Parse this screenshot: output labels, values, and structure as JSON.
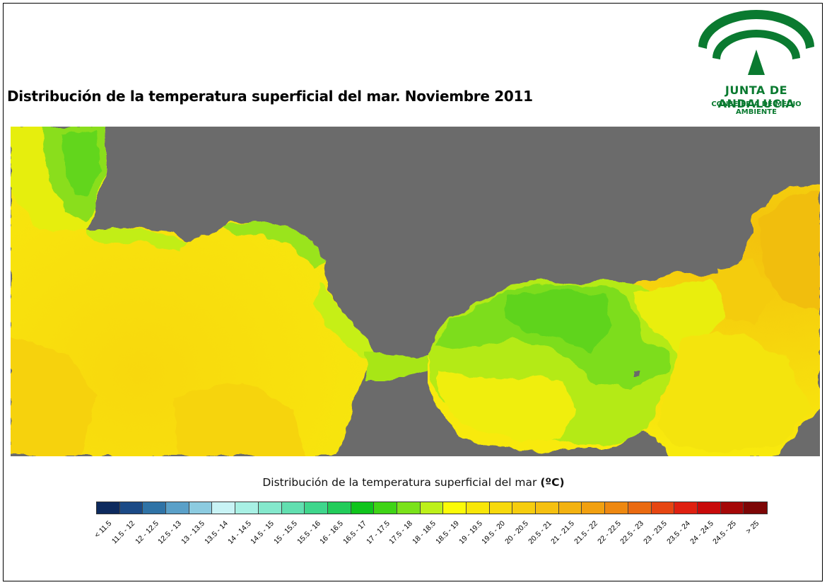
{
  "title": "Distribución de la temperatura superficial del mar. Noviembre 2011",
  "logo": {
    "name": "JUNTA DE ANDALUCIA",
    "subtitle": "CONSEJERÍA DE MEDIO AMBIENTE",
    "color": "#0a7a30"
  },
  "map": {
    "land_color": "#6b6b6b",
    "region": "Estrecho de Gibraltar / Mar de Alborán"
  },
  "legend": {
    "title": "Distribución de la temperatura superficial del mar",
    "unit": "(ºC)",
    "classes": [
      {
        "label": "< 11.5",
        "color": "#0d2a5e"
      },
      {
        "label": "11.5 - 12",
        "color": "#1b4a86"
      },
      {
        "label": "12 - 12.5",
        "color": "#2f73a6"
      },
      {
        "label": "12.5 - 13",
        "color": "#5aa0c8"
      },
      {
        "label": "13 - 13.5",
        "color": "#8ccbe0"
      },
      {
        "label": "13.5 - 14",
        "color": "#c8f3f5"
      },
      {
        "label": "14 - 14.5",
        "color": "#a8f0e4"
      },
      {
        "label": "14.5 - 15",
        "color": "#84e8cc"
      },
      {
        "label": "15 - 15.5",
        "color": "#62dfb0"
      },
      {
        "label": "15.5 - 16",
        "color": "#3fd68c"
      },
      {
        "label": "16 - 16.5",
        "color": "#22cc5a"
      },
      {
        "label": "16.5 - 17",
        "color": "#0fc41c"
      },
      {
        "label": "17 - 17.5",
        "color": "#3fd416"
      },
      {
        "label": "17.5 - 18",
        "color": "#7ae21a"
      },
      {
        "label": "18 - 18.5",
        "color": "#bdf01a"
      },
      {
        "label": "18.5 - 19",
        "color": "#fbfb08"
      },
      {
        "label": "19 - 19.5",
        "color": "#f8e608"
      },
      {
        "label": "19.5 - 20",
        "color": "#f7d90c"
      },
      {
        "label": "20 - 20.5",
        "color": "#f6cd0e"
      },
      {
        "label": "20.5 - 21",
        "color": "#f5c010"
      },
      {
        "label": "21 - 21.5",
        "color": "#f3b210"
      },
      {
        "label": "21.5 - 22",
        "color": "#f1a010"
      },
      {
        "label": "22 - 22.5",
        "color": "#ee8810"
      },
      {
        "label": "22.5 - 23",
        "color": "#ea6a10"
      },
      {
        "label": "23 - 23.5",
        "color": "#e64612"
      },
      {
        "label": "23.5 - 24",
        "color": "#df2010"
      },
      {
        "label": "24 - 24.5",
        "color": "#c80a0a"
      },
      {
        "label": "24.5 - 25",
        "color": "#a50808"
      },
      {
        "label": "> 25",
        "color": "#7d0606"
      }
    ]
  }
}
